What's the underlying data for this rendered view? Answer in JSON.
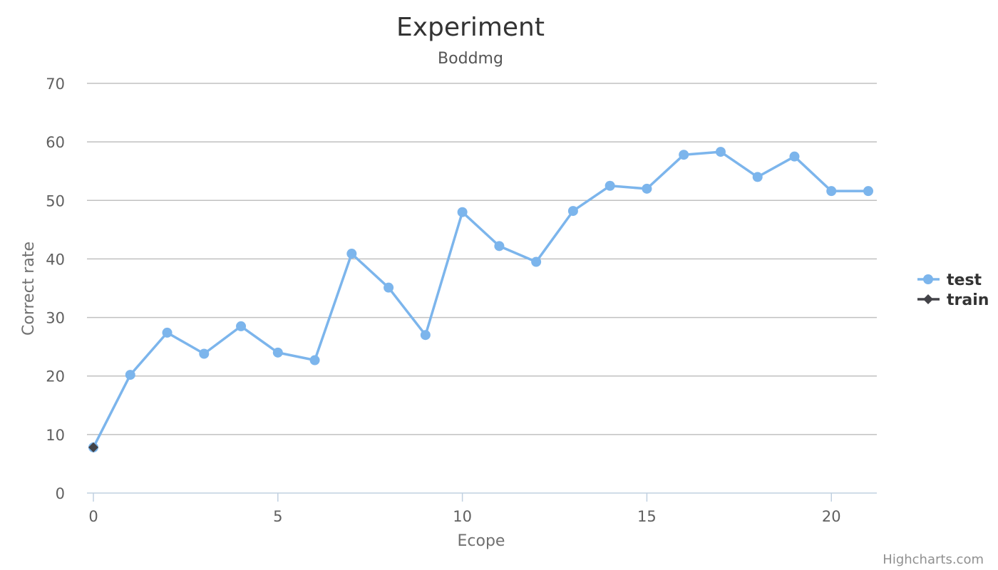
{
  "chart_data": {
    "type": "line",
    "title": "Experiment",
    "subtitle": "Boddmg",
    "xlabel": "Ecope",
    "ylabel": "Correct rate",
    "xlim": [
      0,
      21
    ],
    "ylim": [
      0,
      70
    ],
    "x_ticks": [
      0,
      5,
      10,
      15,
      20
    ],
    "y_ticks": [
      0,
      10,
      20,
      30,
      40,
      50,
      60,
      70
    ],
    "grid": true,
    "legend_position": "right",
    "series": [
      {
        "name": "test",
        "color": "#7cb5ec",
        "marker": "circle",
        "x": [
          0,
          1,
          2,
          3,
          4,
          5,
          6,
          7,
          8,
          9,
          10,
          11,
          12,
          13,
          14,
          15,
          16,
          17,
          18,
          19,
          20,
          21
        ],
        "values": [
          7.8,
          20.2,
          27.4,
          23.8,
          28.5,
          24.0,
          22.7,
          40.9,
          35.1,
          27.0,
          48.0,
          42.2,
          39.5,
          48.2,
          52.5,
          52.0,
          57.8,
          58.3,
          54.0,
          57.5,
          51.6,
          51.6
        ]
      },
      {
        "name": "train",
        "color": "#434348",
        "marker": "diamond",
        "x": [
          0
        ],
        "values": [
          7.8
        ]
      }
    ]
  },
  "credits": "Highcharts.com"
}
